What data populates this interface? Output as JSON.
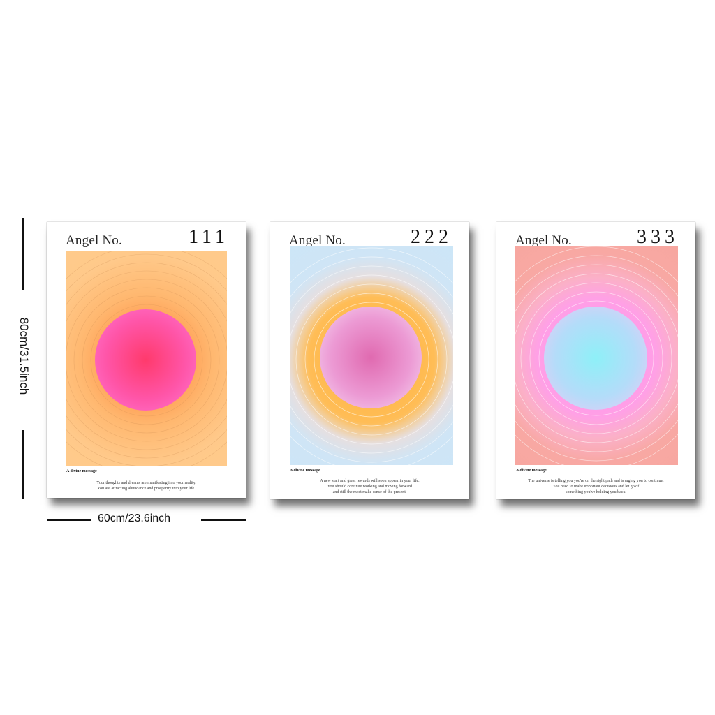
{
  "dimensions": {
    "height_label": "80cm/31.5inch",
    "width_label": "60cm/23.6inch"
  },
  "posters": [
    {
      "title": "Angel No.",
      "number": "111",
      "subtitle": "A divine message",
      "message_lines": [
        "Your thoughts and dreams are manifesting into your reality.",
        "You are attracting abundance and prosperity into your life."
      ],
      "colors": {
        "background": "#ffcc8c",
        "halo": "#ff7b2e",
        "orb": "#ff3a6c"
      }
    },
    {
      "title": "Angel No.",
      "number": "222",
      "subtitle": "A divine message",
      "message_lines": [
        "A new start and great rewards will soon appear in your life.",
        "You should continue working and moving forward",
        "and still the most make sense of the present."
      ],
      "colors": {
        "background": "#cae6f8",
        "halo": "#ffb23d",
        "orb": "#e06ab0"
      }
    },
    {
      "title": "Angel No.",
      "number": "333",
      "subtitle": "A divine message",
      "message_lines": [
        "The universe is telling you you're on the right path and is urging you to continue.",
        "You need to make important decisions and let go of",
        "something you've holding you back."
      ],
      "colors": {
        "background": "#f6a69d",
        "halo": "#ff8bf2",
        "orb": "#8ef0f8"
      }
    }
  ]
}
